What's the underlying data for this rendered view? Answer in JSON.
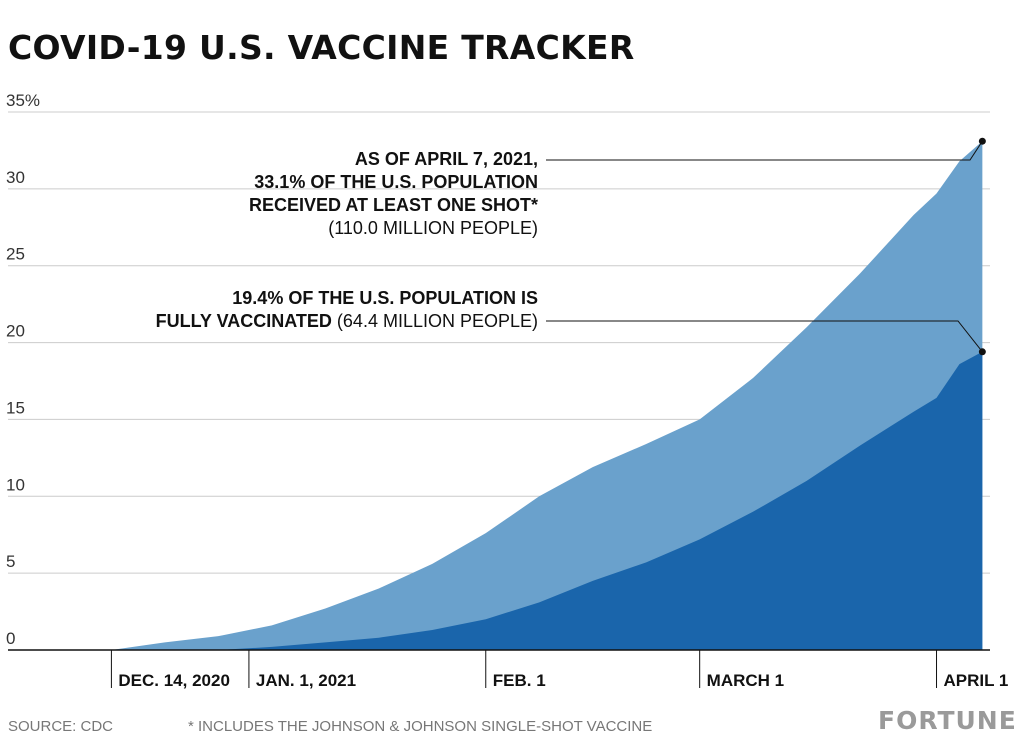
{
  "title": "COVID-19 U.S. VACCINE TRACKER",
  "chart_data": {
    "type": "area",
    "title": "COVID-19 U.S. VACCINE TRACKER",
    "ylim": [
      0,
      35
    ],
    "y_ticks": [
      0,
      5,
      10,
      15,
      20,
      25,
      30,
      35
    ],
    "y_tick_labels": [
      "0",
      "5",
      "10",
      "15",
      "20",
      "25",
      "30",
      "35%"
    ],
    "x_ticks": [
      {
        "date": "2020-12-14",
        "label": "DEC. 14, 2020"
      },
      {
        "date": "2021-01-01",
        "label": "JAN. 1, 2021"
      },
      {
        "date": "2021-02-01",
        "label": "FEB. 1"
      },
      {
        "date": "2021-03-01",
        "label": "MARCH 1"
      },
      {
        "date": "2021-04-01",
        "label": "APRIL 1"
      }
    ],
    "grid": true,
    "colors": {
      "at_least_one_dose": "#6aa1cc",
      "fully_vaccinated": "#1a65ab",
      "grid": "#cccccc"
    },
    "x": [
      "2020-12-14",
      "2020-12-21",
      "2020-12-28",
      "2021-01-04",
      "2021-01-11",
      "2021-01-18",
      "2021-01-25",
      "2021-02-01",
      "2021-02-08",
      "2021-02-15",
      "2021-02-22",
      "2021-03-01",
      "2021-03-08",
      "2021-03-15",
      "2021-03-22",
      "2021-03-29",
      "2021-04-01",
      "2021-04-04",
      "2021-04-07"
    ],
    "series": [
      {
        "values": [
          0,
          0.5,
          0.9,
          1.6,
          2.7,
          4.0,
          5.6,
          7.6,
          10.0,
          11.9,
          13.4,
          15.0,
          17.7,
          21.0,
          24.5,
          28.3,
          29.7,
          31.8,
          33.1
        ]
      },
      {
        "values": [
          0,
          0,
          0,
          0.2,
          0.5,
          0.8,
          1.3,
          2.0,
          3.1,
          4.5,
          5.7,
          7.2,
          9.0,
          11.0,
          13.3,
          15.5,
          16.4,
          18.6,
          19.4
        ]
      }
    ],
    "annotations": [
      {
        "value": 33.1,
        "date": "2021-04-07"
      },
      {
        "value": 19.4,
        "date": "2021-04-07"
      }
    ]
  },
  "annotations": {
    "one_shot": {
      "line1": "AS OF APRIL 7, 2021,",
      "line2": "33.1% OF THE U.S. POPULATION",
      "line3": "RECEIVED AT LEAST ONE SHOT*",
      "line4": "(110.0 MILLION PEOPLE)"
    },
    "fully": {
      "line1": "19.4% OF THE U.S. POPULATION IS",
      "line2_bold": "FULLY VACCINATED",
      "line2_regular": " (64.4 MILLION PEOPLE)"
    }
  },
  "footer": {
    "source": "SOURCE: CDC",
    "note": "* INCLUDES THE JOHNSON & JOHNSON SINGLE-SHOT VACCINE",
    "logo": "FORTUNE"
  }
}
